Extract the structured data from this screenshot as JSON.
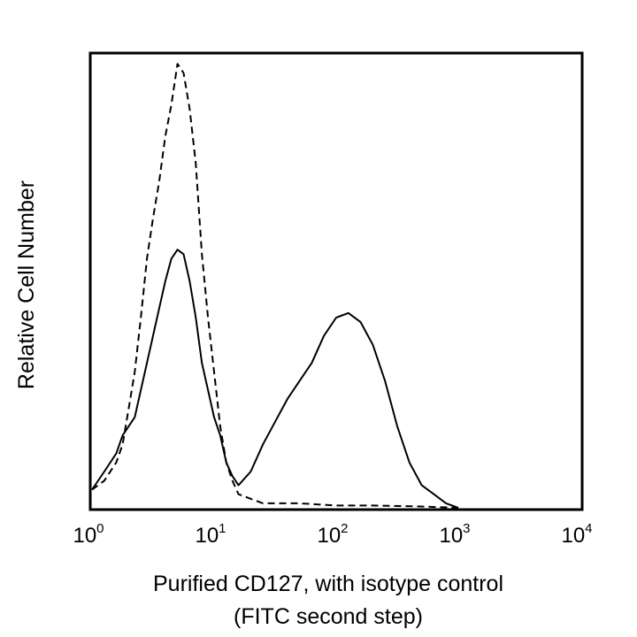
{
  "chart_data": {
    "type": "line",
    "title": "",
    "xlabel": "Purified CD127, with isotype control",
    "xlabel_line2": "(FITC second step)",
    "ylabel": "Relative Cell Number",
    "x_scale": "log",
    "xlim": [
      1,
      10000
    ],
    "ylim": [
      0,
      100
    ],
    "grid": false,
    "legend": "none",
    "x_ticks": [
      {
        "value": 1,
        "base": "10",
        "exp": "0"
      },
      {
        "value": 10,
        "base": "10",
        "exp": "1"
      },
      {
        "value": 100,
        "base": "10",
        "exp": "2"
      },
      {
        "value": 1000,
        "base": "10",
        "exp": "3"
      },
      {
        "value": 10000,
        "base": "10",
        "exp": "4"
      }
    ],
    "series": [
      {
        "style": "dashed",
        "color": "#000000",
        "x": [
          1.0,
          1.26,
          1.58,
          1.78,
          2.0,
          2.24,
          2.51,
          2.82,
          3.16,
          3.55,
          3.98,
          4.47,
          5.01,
          5.62,
          6.31,
          7.08,
          7.94,
          8.91,
          10.0,
          11.22,
          12.59,
          14.13,
          15.85,
          19.95,
          25.12,
          31.62,
          50.12,
          100.0,
          199.5,
          501.2,
          1000.0
        ],
        "y": [
          4,
          6,
          10,
          14,
          22,
          30,
          42,
          55,
          64,
          72,
          82,
          89,
          98,
          96,
          88,
          76,
          56,
          42,
          30,
          18,
          10,
          6,
          3,
          2,
          1,
          1,
          1,
          0.5,
          0.5,
          0.3,
          0
        ]
      },
      {
        "style": "solid",
        "color": "#000000",
        "x": [
          1.0,
          1.26,
          1.58,
          1.78,
          2.0,
          2.24,
          2.51,
          2.82,
          3.16,
          3.55,
          3.98,
          4.47,
          5.01,
          5.62,
          6.31,
          7.08,
          7.94,
          8.91,
          10.0,
          11.22,
          12.59,
          14.13,
          15.85,
          19.95,
          25.12,
          31.62,
          39.81,
          50.12,
          63.1,
          79.43,
          100.0,
          125.9,
          158.5,
          199.5,
          251.2,
          316.2,
          398.1,
          501.2,
          630.9,
          794.3,
          1000.0
        ],
        "y": [
          4,
          8,
          12,
          16,
          18,
          20,
          26,
          32,
          38,
          44,
          50,
          55,
          57,
          56,
          50,
          42,
          32,
          26,
          20,
          16,
          10,
          7,
          5,
          8,
          14,
          19,
          24,
          28,
          32,
          38,
          42,
          43,
          41,
          36,
          28,
          18,
          10,
          5,
          3,
          1,
          0
        ]
      }
    ],
    "annotations": []
  }
}
